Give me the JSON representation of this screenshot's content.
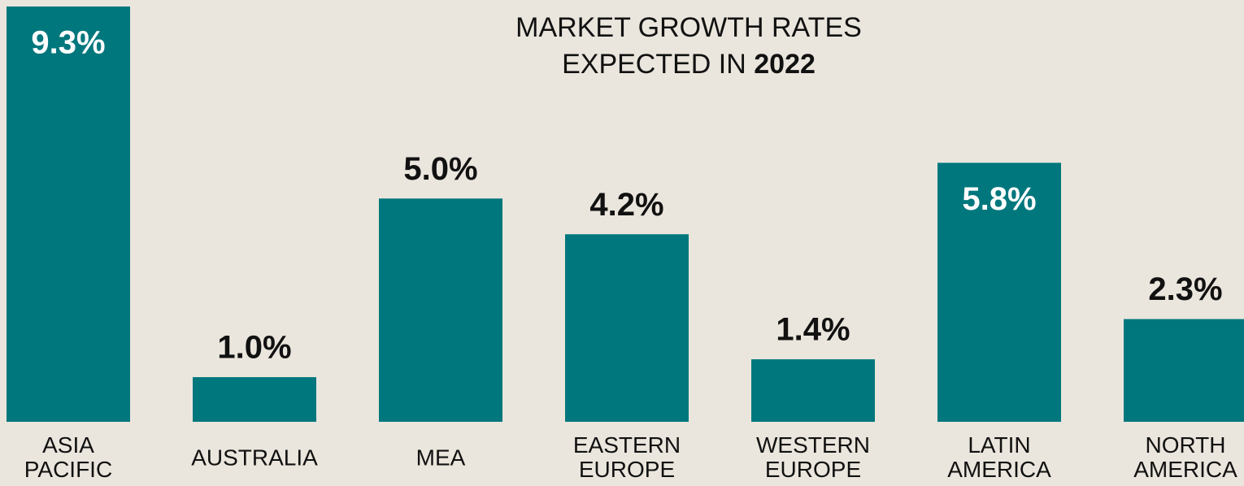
{
  "chart_data": {
    "type": "bar",
    "title_lines": [
      "MARKET GROWTH RATES",
      "EXPECTED IN"
    ],
    "title_bold": "2022",
    "categories": [
      "ASIA PACIFIC",
      "AUSTRALIA",
      "MEA",
      "EASTERN EUROPE",
      "WESTERN EUROPE",
      "LATIN AMERICA",
      "NORTH AMERICA"
    ],
    "values": [
      9.3,
      1.0,
      5.0,
      4.2,
      1.4,
      5.8,
      2.3
    ],
    "value_labels": [
      "9.3%",
      "1.0%",
      "5.0%",
      "4.2%",
      "1.4%",
      "5.8%",
      "2.3%"
    ],
    "color": "#00777d"
  }
}
